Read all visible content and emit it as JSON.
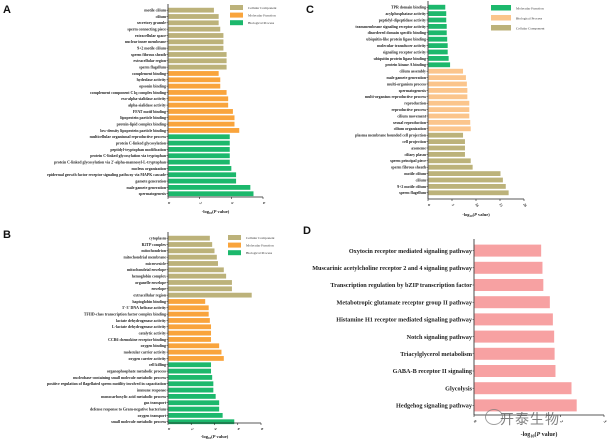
{
  "panels": {
    "A": {
      "letter": "A"
    },
    "B": {
      "letter": "B"
    },
    "C": {
      "letter": "C"
    },
    "D": {
      "letter": "D"
    }
  },
  "watermark": {
    "text": "开泰生物",
    "icon": "wechat-icon"
  },
  "colors": {
    "cellular_component": "#bcb27a",
    "molecular_function_orange": "#f9a43c",
    "biological_process_green": "#1cb86c",
    "biological_process_light_orange": "#fbc58c",
    "pathway_pink": "#f7a1a2"
  },
  "chart_data": [
    {
      "id": "A",
      "type": "bar",
      "orientation": "horizontal",
      "xlabel": "-log10(P value)",
      "xlim": [
        0,
        6
      ],
      "xticks": [
        "0",
        "2",
        "4",
        "6"
      ],
      "legend": {
        "position": "top-right",
        "entries": [
          {
            "name": "Cellular Component",
            "color": "#bcb27a"
          },
          {
            "name": "Molecular Function",
            "color": "#f9a43c"
          },
          {
            "name": "Biological Process",
            "color": "#1cb86c"
          }
        ]
      },
      "categories": [
        "motile cilium",
        "cilium",
        "secretory granule",
        "sperm connecting piece",
        "extracellular space",
        "nuclear inner membrane",
        "9+2 motile cilium",
        "sperm fibrous sheath",
        "extracellular region",
        "sperm flagellum",
        "complement binding",
        "hydrolase activity",
        "opsonin binding",
        "complement component C1q complex binding",
        "exo-alpha-sialidase activity",
        "alpha-sialidase activity",
        "FFAT motif binding",
        "lipoprotein particle binding",
        "protein-lipid complex binding",
        "low-density lipoprotein particle binding",
        "multicellular organismal reproductive process",
        "protein C-linked glycosylation",
        "peptidyl-tryptophan modification",
        "protein C-linked glycosylation via tryptophan",
        "protein C-linked glycosylation via 2'-alpha-mannosyl-L-tryptophan",
        "nucleus organization",
        "epidermal growth factor receptor signaling pathway via MAPK cascade",
        "gamete generation",
        "male gamete generation",
        "spermatogenesis"
      ],
      "groups": [
        "Cellular Component",
        "Cellular Component",
        "Cellular Component",
        "Cellular Component",
        "Cellular Component",
        "Cellular Component",
        "Cellular Component",
        "Cellular Component",
        "Cellular Component",
        "Cellular Component",
        "Molecular Function",
        "Molecular Function",
        "Molecular Function",
        "Molecular Function",
        "Molecular Function",
        "Molecular Function",
        "Molecular Function",
        "Molecular Function",
        "Molecular Function",
        "Molecular Function",
        "Biological Process",
        "Biological Process",
        "Biological Process",
        "Biological Process",
        "Biological Process",
        "Biological Process",
        "Biological Process",
        "Biological Process",
        "Biological Process",
        "Biological Process"
      ],
      "values": [
        2.9,
        3.2,
        3.2,
        3.3,
        3.5,
        3.5,
        3.5,
        3.7,
        3.7,
        3.7,
        3.2,
        3.3,
        3.3,
        3.7,
        3.8,
        3.8,
        4.1,
        4.2,
        4.2,
        4.5,
        3.9,
        3.9,
        3.9,
        3.9,
        3.9,
        4.0,
        4.3,
        4.3,
        5.2,
        5.4
      ]
    },
    {
      "id": "B",
      "type": "bar",
      "orientation": "horizontal",
      "xlabel": "-log10(P value)",
      "xlim": [
        0,
        8
      ],
      "xticks": [
        "0",
        "2",
        "4",
        "6",
        "8"
      ],
      "legend": {
        "position": "top-right",
        "entries": [
          {
            "name": "Cellular Component",
            "color": "#bcb27a"
          },
          {
            "name": "Molecular Function",
            "color": "#f9a43c"
          },
          {
            "name": "Biological Process",
            "color": "#1cb86c"
          }
        ]
      },
      "categories": [
        "cytoplasm",
        "R2TP complex",
        "mitochondrion",
        "mitochondrial membrane",
        "microvesicle",
        "mitochondrial envelope",
        "hemoglobin complex",
        "organelle envelope",
        "envelope",
        "extracellular region",
        "haptoglobin binding",
        "5'-3' DNA helicase activity",
        "TFIID-class transcription factor complex binding",
        "lactate dehydrogenase activity",
        "L-lactate dehydrogenase activity",
        "catalytic activity",
        "CCR6 chemokine receptor binding",
        "oxygen binding",
        "molecular carrier activity",
        "oxygen carrier activity",
        "cell killing",
        "organophosphate metabolic process",
        "nucleobase-containing small molecule metabolic process",
        "positive regulation of flagellated sperm motility involved in capacitation",
        "immune response",
        "monocarboxylic acid metabolic process",
        "gas transport",
        "defense response to Gram-negative bacterium",
        "oxygen transport",
        "small molecule metabolic process"
      ],
      "groups": [
        "Cellular Component",
        "Cellular Component",
        "Cellular Component",
        "Cellular Component",
        "Cellular Component",
        "Cellular Component",
        "Cellular Component",
        "Cellular Component",
        "Cellular Component",
        "Cellular Component",
        "Molecular Function",
        "Molecular Function",
        "Molecular Function",
        "Molecular Function",
        "Molecular Function",
        "Molecular Function",
        "Molecular Function",
        "Molecular Function",
        "Molecular Function",
        "Molecular Function",
        "Biological Process",
        "Biological Process",
        "Biological Process",
        "Biological Process",
        "Biological Process",
        "Biological Process",
        "Biological Process",
        "Biological Process",
        "Biological Process",
        "Biological Process"
      ],
      "values": [
        3.6,
        3.8,
        4.0,
        4.2,
        4.3,
        4.8,
        5.0,
        5.5,
        5.5,
        7.2,
        3.2,
        3.5,
        3.5,
        3.6,
        3.7,
        3.7,
        3.7,
        4.4,
        4.6,
        4.8,
        3.7,
        3.7,
        3.8,
        3.9,
        3.9,
        4.1,
        4.4,
        4.4,
        4.7,
        5.7
      ]
    },
    {
      "id": "C",
      "type": "bar",
      "orientation": "horizontal",
      "xlabel": "-log10(P value)",
      "xlim": [
        0,
        20
      ],
      "xticks": [
        "0",
        "5",
        "10",
        "15",
        "20"
      ],
      "legend": {
        "position": "top-right",
        "entries": [
          {
            "name": "Molecular Function",
            "color": "#1cb86c"
          },
          {
            "name": "Biological Process",
            "color": "#fbc58c"
          },
          {
            "name": "Cellular Component",
            "color": "#bcb27a"
          }
        ]
      },
      "categories": [
        "TPR domain binding",
        "acylphosphatase activity",
        "peptidyl-dipeptidase activity",
        "transmembrane signaling receptor activity",
        "disordered domain specific binding",
        "ubiquitin-like protein ligase binding",
        "molecular transducer activity",
        "signaling receptor activity",
        "ubiquitin protein ligase binding",
        "protein kinase A binding",
        "cilium assembly",
        "male gamete generation",
        "multi-organism process",
        "spermatogenesis",
        "multi-organism reproductive process",
        "reproduction",
        "reproductive process",
        "cilium movement",
        "sexual reproduction",
        "cilium organization",
        "plasma membrane bounded cell projection",
        "cell projection",
        "axoneme",
        "ciliary plasm",
        "sperm principal piece",
        "sperm fibrous sheath",
        "motile cilium",
        "cilium",
        "9+2 motile cilium",
        "sperm flagellum"
      ],
      "groups": [
        "Molecular Function",
        "Molecular Function",
        "Molecular Function",
        "Molecular Function",
        "Molecular Function",
        "Molecular Function",
        "Molecular Function",
        "Molecular Function",
        "Molecular Function",
        "Molecular Function",
        "Biological Process",
        "Biological Process",
        "Biological Process",
        "Biological Process",
        "Biological Process",
        "Biological Process",
        "Biological Process",
        "Biological Process",
        "Biological Process",
        "Biological Process",
        "Cellular Component",
        "Cellular Component",
        "Cellular Component",
        "Cellular Component",
        "Cellular Component",
        "Cellular Component",
        "Cellular Component",
        "Cellular Component",
        "Cellular Component",
        "Cellular Component"
      ],
      "values": [
        3.6,
        3.8,
        3.8,
        3.9,
        3.9,
        4.0,
        4.1,
        4.1,
        4.3,
        4.6,
        7.3,
        7.9,
        8.1,
        8.2,
        8.2,
        8.6,
        8.6,
        8.6,
        8.8,
        8.9,
        7.3,
        7.7,
        7.7,
        7.7,
        8.9,
        9.3,
        15.1,
        15.6,
        16.2,
        16.8
      ]
    },
    {
      "id": "D",
      "type": "bar",
      "orientation": "horizontal",
      "xlabel": "-log10(P value)",
      "xlim": [
        0,
        3
      ],
      "xticks": [
        "0",
        "2",
        "3"
      ],
      "categories": [
        "Oxytocin receptor mediated signaling pathway",
        "Muscarinic acetylcholine receptor 2 and 4 signaling pathway",
        "Transcription regulation by bZIP transcription factor",
        "Metabotropic glutamate receptor group II pathway",
        "Histamine H1 receptor mediated signaling pathway",
        "Notch signaling pathway",
        "Triacylglycerol metabolism",
        "GABA-B receptor II signaling",
        "Glycolysis",
        "Hedgehog signaling pathway"
      ],
      "values": [
        1.55,
        1.58,
        1.6,
        1.75,
        1.82,
        1.85,
        1.86,
        1.88,
        2.25,
        2.37
      ],
      "color": "#f7a1a2"
    }
  ]
}
